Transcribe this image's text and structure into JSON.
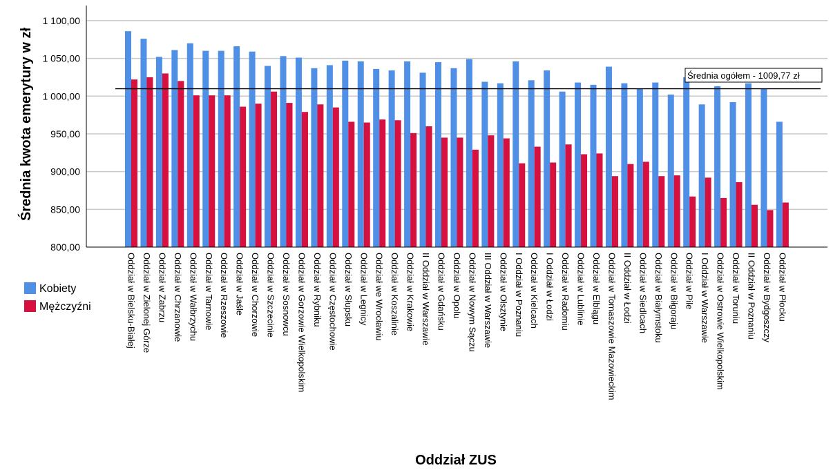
{
  "chart_data": {
    "type": "bar",
    "xlabel": "Oddział ZUS",
    "ylabel": "Średnia kwota emerytury w zł",
    "ylim": [
      800,
      1120
    ],
    "yticks": [
      800,
      850,
      900,
      950,
      1000,
      1050,
      1100
    ],
    "ytick_labels": [
      "800,00",
      "850,00",
      "900,00",
      "950,00",
      "1 000,00",
      "1 050,00",
      "1 100,00"
    ],
    "grid": true,
    "legend_position": "left",
    "categories": [
      "Oddział w Bielsku-Białej",
      "Oddział w Zielonej Górze",
      "Oddział w Zabrzu",
      "Oddział w Chrzanowie",
      "Oddział w Wałbrzychu",
      "Oddział w Tarnowie",
      "Oddział w Rzeszowie",
      "Oddział w Jaśle",
      "Oddział w Chorzowie",
      "Oddział w Szczecinie",
      "Oddział w Sosnowcu",
      "Oddział w Gorzowie Wielkopolskim",
      "Oddział w Rybniku",
      "Oddział w Częstochowie",
      "Oddział w Słupsku",
      "Oddział w Legnicy",
      "Oddział we Wrocławiu",
      "Oddział w Koszalinie",
      "Oddział w Krakowie",
      "II Oddział w Warszawie",
      "Oddział w Gdańsku",
      "Oddział w Opolu",
      "Oddział w Nowym Sączu",
      "III Oddział w Warszawie",
      "Oddział w Olsztynie",
      "I Oddział w Poznaniu",
      "Oddział w Kielcach",
      "I Oddział w Łodzi",
      "Oddział w Radomiu",
      "Oddział w Lublinie",
      "Oddział w Elblągu",
      "Oddział w Tomaszowie Mazowieckim",
      "II Oddział w Łodzi",
      "Oddział w Siedlcach",
      "Oddział w Białymstoku",
      "Oddział w Biłgoraju",
      "Oddział w Pile",
      "I Oddział w Warszawie",
      "Oddział w Ostrowie Wielkopolskim",
      "Oddział w Toruniu",
      "II Oddział w Poznaniu",
      "Oddział w Bydgoszczy",
      "Oddział w Płocku"
    ],
    "series": [
      {
        "name": "Kobiety",
        "color": "#4f8fe6",
        "values": [
          1086,
          1076,
          1052,
          1061,
          1070,
          1060,
          1060,
          1066,
          1059,
          1040,
          1053,
          1051,
          1037,
          1041,
          1047,
          1046,
          1036,
          1034,
          1046,
          1031,
          1045,
          1037,
          1049,
          1019,
          1017,
          1046,
          1021,
          1034,
          1006,
          1018,
          1015,
          1039,
          1017,
          1010,
          1018,
          1002,
          1025,
          989,
          1013,
          992,
          1017,
          1010,
          966
        ]
      },
      {
        "name": "Mężczyźni",
        "color": "#d6113f",
        "values": [
          1022,
          1025,
          1030,
          1020,
          1001,
          1001,
          1001,
          986,
          990,
          1006,
          991,
          979,
          989,
          985,
          966,
          965,
          969,
          968,
          951,
          960,
          945,
          945,
          929,
          948,
          944,
          911,
          933,
          912,
          936,
          923,
          924,
          894,
          910,
          913,
          894,
          895,
          867,
          892,
          865,
          886,
          856,
          849,
          859
        ]
      }
    ],
    "reference_line": {
      "value": 1009.77,
      "label": "Średnia ogółem - 1009,77 zł"
    }
  }
}
